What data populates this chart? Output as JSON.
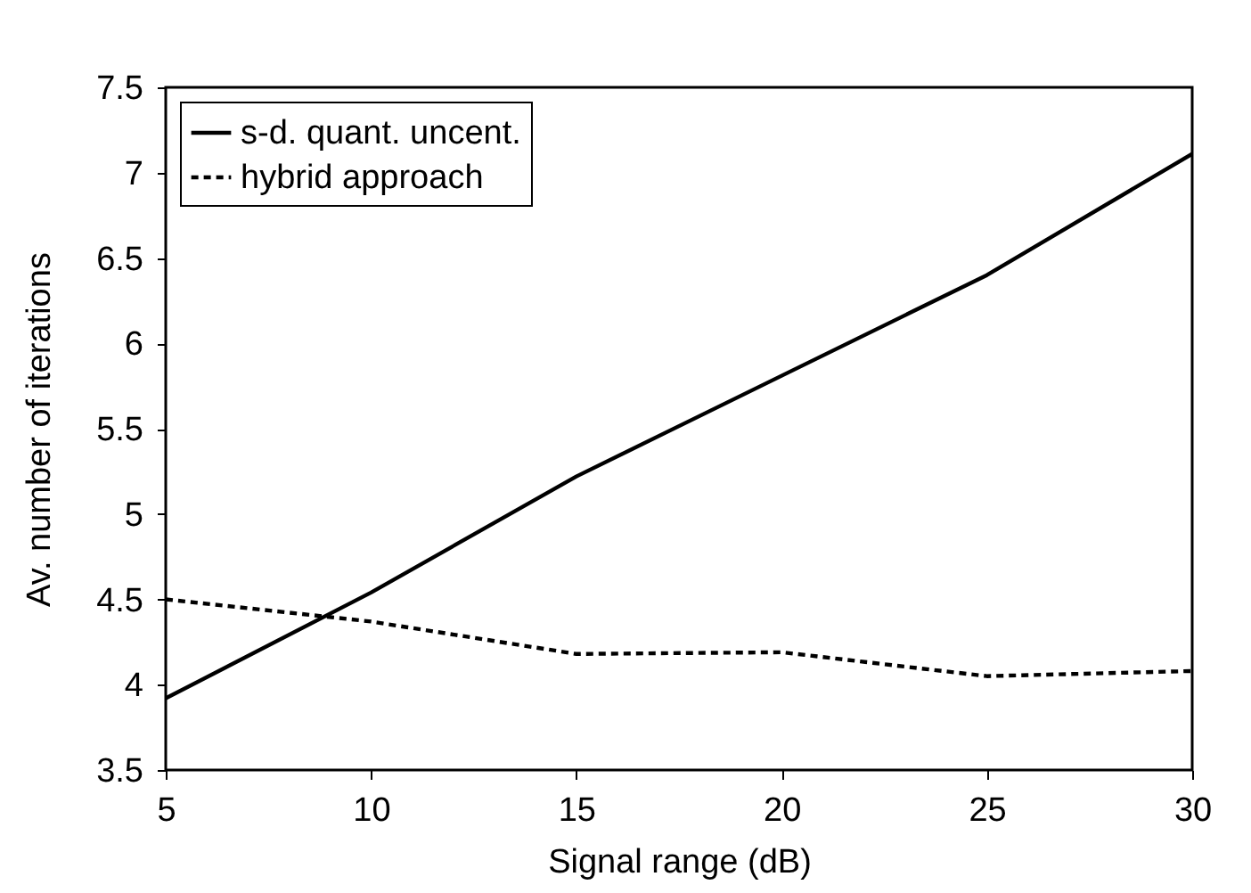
{
  "chart_data": {
    "type": "line",
    "xlabel": "Signal range (dB)",
    "ylabel": "Av. number of iterations",
    "x": [
      5,
      10,
      15,
      20,
      25,
      30
    ],
    "series": [
      {
        "name": "s-d. quant. uncent.",
        "color": "#000000",
        "line_style": "solid",
        "values": [
          3.92,
          4.54,
          5.22,
          5.81,
          6.4,
          7.11
        ]
      },
      {
        "name": "hybrid approach",
        "color": "#000000",
        "line_style": "dashed",
        "values": [
          4.5,
          4.37,
          4.18,
          4.19,
          4.05,
          4.08
        ]
      }
    ],
    "xlim": [
      5,
      30
    ],
    "xticks": [
      5,
      10,
      15,
      20,
      25,
      30
    ],
    "ylim": [
      3.5,
      7.5
    ],
    "yticks": [
      3.5,
      4,
      4.5,
      5,
      5.5,
      6,
      6.5,
      7,
      7.5
    ],
    "legend": "top left",
    "grid": false,
    "marker": "none"
  }
}
